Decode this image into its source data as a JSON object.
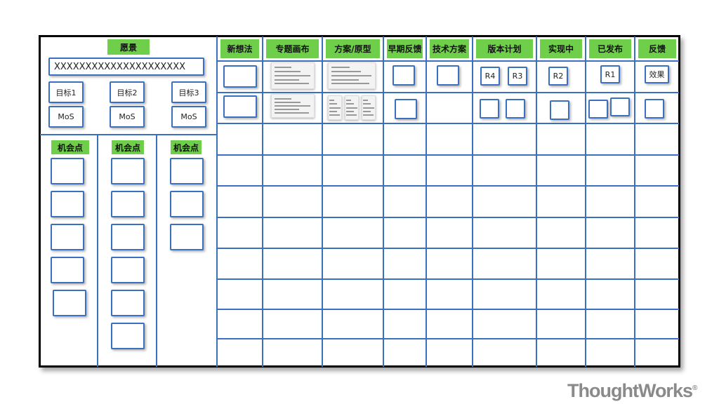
{
  "vision": {
    "label": "愿景",
    "value": "XXXXXXXXXXXXXXXXXXXXX"
  },
  "goals": [
    "目标1",
    "目标2",
    "目标3"
  ],
  "mos": [
    "MoS",
    "MoS",
    "MoS"
  ],
  "opportunities": {
    "label": "机会点",
    "card_counts": [
      5,
      6,
      3
    ]
  },
  "columns": [
    "新想法",
    "专题画布",
    "方案/原型",
    "早期反馈",
    "技术方案",
    "版本计划",
    "实现中",
    "已发布",
    "反馈"
  ],
  "cards": {
    "r4": "R4",
    "r3": "R3",
    "r2": "R2",
    "r1": "R1",
    "effect": "效果"
  },
  "logo": "ThoughtWorks",
  "colors": {
    "header": "#6fcf4a",
    "grid": "#3b6fc0",
    "border": "#000000"
  }
}
